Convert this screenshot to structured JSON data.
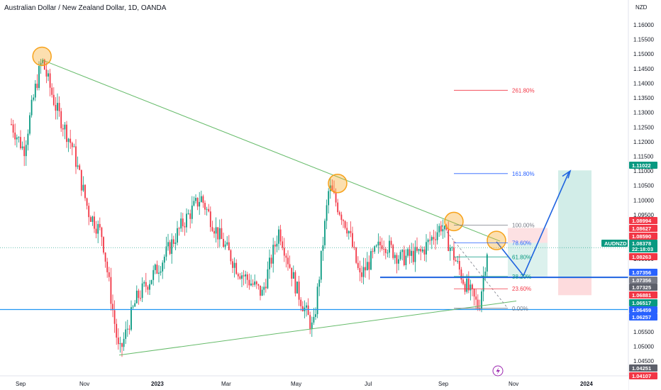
{
  "header": {
    "title": "Australian Dollar / New Zealand Dollar, 1D, OANDA"
  },
  "axis": {
    "currency_label": "NZD",
    "price_ticks": [
      "1.16000",
      "1.15500",
      "1.15000",
      "1.14500",
      "1.14000",
      "1.13500",
      "1.13000",
      "1.12500",
      "1.12000",
      "1.11500",
      "1.11000",
      "1.10500",
      "1.10000",
      "1.09500",
      "1.09000",
      "1.08500",
      "1.08000",
      "1.07500",
      "1.07000",
      "1.06500",
      "1.06000",
      "1.05500",
      "1.05000",
      "1.04500"
    ],
    "time_ticks": [
      "Sep",
      "Nov",
      "2023",
      "Mar",
      "May",
      "Jul",
      "Sep",
      "Nov",
      "2024"
    ]
  },
  "fib_levels": [
    {
      "label": "261.80%",
      "color": "#f23645"
    },
    {
      "label": "161.80%",
      "color": "#2962ff"
    },
    {
      "label": "100.00%",
      "color": "#787b86"
    },
    {
      "label": "78.60%",
      "color": "#2962ff"
    },
    {
      "label": "61.80%",
      "color": "#089981"
    },
    {
      "label": "38.20%",
      "color": "#089981"
    },
    {
      "label": "23.60%",
      "color": "#f23645"
    },
    {
      "label": "0.00%",
      "color": "#787b86"
    }
  ],
  "price_tags": [
    {
      "text": "1.11022",
      "color": "#089981"
    },
    {
      "text": "1.08994",
      "color": "#f23645"
    },
    {
      "text": "1.08627",
      "color": "#f23645"
    },
    {
      "text": "1.08590",
      "color": "#f23645"
    },
    {
      "text": "1.08378",
      "color": "#089981"
    },
    {
      "text": "22:18:03",
      "color": "#089981"
    },
    {
      "text": "1.08263",
      "color": "#f23645"
    },
    {
      "text": "1.07356",
      "color": "#2962ff"
    },
    {
      "text": "1.07356",
      "color": "#787b86"
    },
    {
      "text": "1.07325",
      "color": "#5d606b"
    },
    {
      "text": "1.06881",
      "color": "#f23645"
    },
    {
      "text": "1.06517",
      "color": "#089981"
    },
    {
      "text": "1.06459",
      "color": "#2962ff"
    },
    {
      "text": "1.06257",
      "color": "#2962ff"
    },
    {
      "text": "1.04251",
      "color": "#5d606b"
    },
    {
      "text": "1.04107",
      "color": "#f23645"
    }
  ],
  "symbol_tag": {
    "text": "AUDNZD",
    "color": "#089981"
  },
  "colors": {
    "up": "#089981",
    "down": "#f23645",
    "trend": "#66bb6a",
    "support": "#2196f3",
    "projection": "#1e63e0",
    "marker": "#f7a21b"
  },
  "icons": {
    "flash": "lightning-icon"
  },
  "chart_data": {
    "type": "candlestick",
    "symbol": "AUDNZD",
    "timeframe": "1D",
    "ylim": [
      1.0425,
      1.1625
    ],
    "swing_points": [
      {
        "date": "2022-09-28",
        "price": 1.148
      },
      {
        "date": "2022-12-05",
        "price": 1.047
      },
      {
        "date": "2023-05-25",
        "price": 1.0555
      },
      {
        "date": "2023-06-08",
        "price": 1.1045
      },
      {
        "date": "2023-07-05",
        "price": 1.0735
      },
      {
        "date": "2023-09-15",
        "price": 1.0915
      },
      {
        "date": "2023-10-18",
        "price": 1.0632
      },
      {
        "date": "2023-10-26",
        "price": 1.085
      }
    ],
    "fibonacci": {
      "price_0": 1.063,
      "price_100": 1.0915,
      "levels": [
        {
          "ratio": "0.00%",
          "price": 1.063
        },
        {
          "ratio": "23.60%",
          "price": 1.0697
        },
        {
          "ratio": "38.20%",
          "price": 1.0739
        },
        {
          "ratio": "61.80%",
          "price": 1.0806
        },
        {
          "ratio": "78.60%",
          "price": 1.0854
        },
        {
          "ratio": "100.00%",
          "price": 1.0915
        },
        {
          "ratio": "161.80%",
          "price": 1.1091
        },
        {
          "ratio": "261.80%",
          "price": 1.1376
        }
      ]
    },
    "horizontal_lines": [
      {
        "name": "resistance-support",
        "price": 1.0736
      },
      {
        "name": "lower-support",
        "price": 1.0626
      }
    ],
    "long_position": {
      "entry": 1.0736,
      "target": 1.1102,
      "stop": 1.0675
    },
    "current_price": 1.08378
  }
}
